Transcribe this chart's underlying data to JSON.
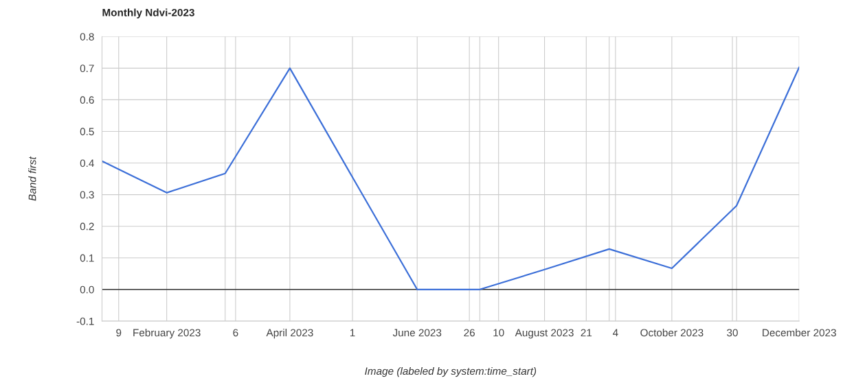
{
  "chart_data": {
    "type": "line",
    "title": "Monthly Ndvi-2023",
    "xlabel": "Image (labeled by system:time_start)",
    "ylabel": "Band first",
    "x": [
      "2023-01-01",
      "2023-02-01",
      "2023-03-01",
      "2023-04-01",
      "2023-05-01",
      "2023-06-01",
      "2023-07-01",
      "2023-08-01",
      "2023-09-01",
      "2023-10-01",
      "2023-11-01",
      "2023-12-01"
    ],
    "series": [
      {
        "color": "#3c6fd8",
        "values": [
          0.406,
          0.306,
          0.367,
          0.7,
          0.355,
          0.0,
          0.0,
          0.063,
          0.128,
          0.067,
          0.265,
          0.703
        ]
      }
    ],
    "xlim": [
      "2023-01-01",
      "2023-12-01"
    ],
    "xticks": [
      {
        "value": "2023-01-09",
        "label": "9"
      },
      {
        "value": "2023-02-01",
        "label": "February 2023"
      },
      {
        "value": "2023-03-01",
        "label": null
      },
      {
        "value": "2023-03-06",
        "label": "6"
      },
      {
        "value": "2023-04-01",
        "label": "April 2023"
      },
      {
        "value": "2023-05-01",
        "label": "1"
      },
      {
        "value": "2023-06-01",
        "label": "June 2023"
      },
      {
        "value": "2023-06-26",
        "label": "26"
      },
      {
        "value": "2023-07-01",
        "label": null
      },
      {
        "value": "2023-07-10",
        "label": "10"
      },
      {
        "value": "2023-08-01",
        "label": "August 2023"
      },
      {
        "value": "2023-08-21",
        "label": "21"
      },
      {
        "value": "2023-09-01",
        "label": null
      },
      {
        "value": "2023-09-04",
        "label": "4"
      },
      {
        "value": "2023-10-01",
        "label": "October 2023"
      },
      {
        "value": "2023-10-30",
        "label": "30"
      },
      {
        "value": "2023-11-01",
        "label": null
      },
      {
        "value": "2023-12-01",
        "label": "December 2023"
      }
    ],
    "ylim": [
      -0.1,
      0.8
    ],
    "yticks": [
      -0.1,
      {
        "value": 0,
        "label": "0.0"
      },
      0.1,
      0.2,
      0.3,
      0.4,
      0.5,
      0.6,
      0.7,
      0.8
    ],
    "ref_lines": [
      {
        "axis": "y",
        "value": 0,
        "color": "#333333"
      }
    ],
    "grid": true,
    "marker": "none",
    "line_style": "solid",
    "legend": false
  }
}
